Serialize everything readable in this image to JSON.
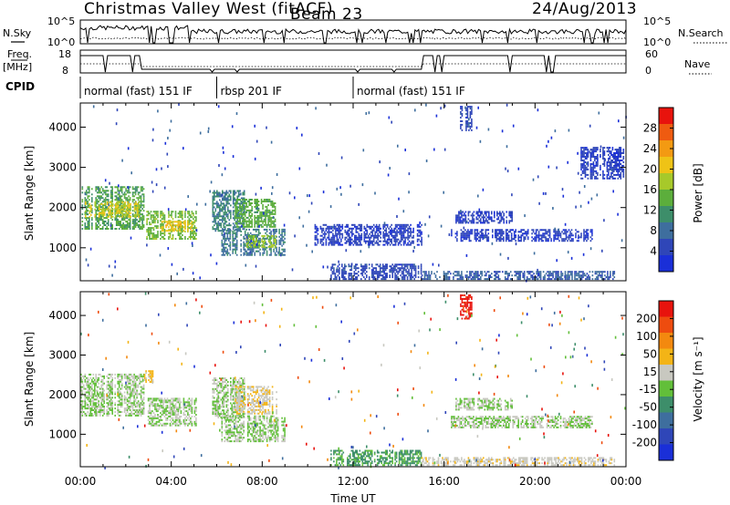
{
  "header": {
    "station": "Christmas Valley West (fitACF)",
    "beam": "Beam 23",
    "date": "24/Aug/2013"
  },
  "top_panels": {
    "nsky_label": "N.Sky",
    "nsky_ticks": [
      "10^5",
      "10^0"
    ],
    "nsearch_label": "N.Search",
    "nsearch_ticks": [
      "10^5",
      "10^0"
    ],
    "freq_label_1": "Freq.",
    "freq_label_2": "[MHz]",
    "freq_ticks": [
      "18",
      "8"
    ],
    "nave_label": "Nave",
    "nave_ticks": [
      "60",
      "0"
    ],
    "cpid_label": "CPID",
    "cpid_segments": [
      {
        "label": "normal (fast) 151 IF",
        "start": 0.0,
        "end": 6.0
      },
      {
        "label": "rbsp 201 IF",
        "start": 6.0,
        "end": 12.0
      },
      {
        "label": "normal (fast) 151 IF",
        "start": 12.0,
        "end": 24.0
      }
    ]
  },
  "colors": {
    "power_scale": [
      "#1a2fd8",
      "#2f46b8",
      "#3e6e9e",
      "#3d8e6a",
      "#5cae3c",
      "#a7c92a",
      "#efc316",
      "#f39a12",
      "#ef5b10",
      "#e8130d"
    ],
    "velocity_scale": [
      "#1a2fd8",
      "#2f46b8",
      "#3e6e9e",
      "#3d8e6a",
      "#62bf3a",
      "#c8c8c0",
      "#f3b416",
      "#f3890f",
      "#ee4c0f",
      "#e8130d"
    ]
  },
  "chart_data": [
    {
      "type": "heatmap",
      "title": "",
      "ylabel": "Slant Range [km]",
      "xlabel": "",
      "ylim": [
        180,
        4600
      ],
      "xlim": [
        0,
        24
      ],
      "yticks": [
        1000,
        2000,
        3000,
        4000
      ],
      "colorbar": {
        "label": "Power [dB]",
        "range": [
          0,
          32
        ],
        "ticks": [
          4,
          8,
          12,
          16,
          20,
          24,
          28
        ]
      },
      "regions": [
        {
          "t0": 0.0,
          "t1": 2.8,
          "r0": 1450,
          "r1": 2500,
          "level": 13
        },
        {
          "t0": 0.2,
          "t1": 2.6,
          "r0": 1750,
          "r1": 2150,
          "level": 19
        },
        {
          "t0": 2.9,
          "t1": 5.1,
          "r0": 1200,
          "r1": 1900,
          "level": 15
        },
        {
          "t0": 3.5,
          "t1": 4.9,
          "r0": 1400,
          "r1": 1650,
          "level": 21
        },
        {
          "t0": 5.8,
          "t1": 7.2,
          "r0": 1400,
          "r1": 2400,
          "level": 10
        },
        {
          "t0": 6.2,
          "t1": 9.0,
          "r0": 800,
          "r1": 1450,
          "level": 9
        },
        {
          "t0": 6.8,
          "t1": 8.6,
          "r0": 1500,
          "r1": 2200,
          "level": 14
        },
        {
          "t0": 7.3,
          "t1": 8.6,
          "r0": 1000,
          "r1": 1300,
          "level": 17
        },
        {
          "t0": 10.3,
          "t1": 15.0,
          "r0": 1050,
          "r1": 1550,
          "level": 4
        },
        {
          "t0": 16.3,
          "t1": 22.5,
          "r0": 1150,
          "r1": 1450,
          "level": 4
        },
        {
          "t0": 16.5,
          "t1": 19.0,
          "r0": 1600,
          "r1": 1900,
          "level": 4
        },
        {
          "t0": 22.0,
          "t1": 23.9,
          "r0": 2700,
          "r1": 3500,
          "level": 4
        },
        {
          "t0": 11.0,
          "t1": 15.0,
          "r0": 200,
          "r1": 600,
          "level": 5
        },
        {
          "t0": 15.0,
          "t1": 23.5,
          "r0": 200,
          "r1": 420,
          "level": 7
        },
        {
          "t0": 16.7,
          "t1": 17.2,
          "r0": 3900,
          "r1": 4500,
          "level": 5
        }
      ]
    },
    {
      "type": "heatmap",
      "title": "",
      "ylabel": "Slant Range [km]",
      "xlabel": "Time UT",
      "ylim": [
        180,
        4600
      ],
      "xlim": [
        0,
        24
      ],
      "yticks": [
        1000,
        2000,
        3000,
        4000
      ],
      "xticks": [
        "00:00",
        "04:00",
        "08:00",
        "12:00",
        "16:00",
        "20:00",
        "00:00"
      ],
      "colorbar": {
        "label": "Velocity [m s⁻¹]",
        "range": [
          -250,
          250
        ],
        "ticks": [
          200,
          100,
          50,
          15,
          -15,
          -50,
          -100,
          -200
        ]
      },
      "regions": [
        {
          "t0": 0.0,
          "t1": 2.8,
          "r0": 1450,
          "r1": 2500,
          "level": 0
        },
        {
          "t0": 2.9,
          "t1": 5.1,
          "r0": 1200,
          "r1": 1900,
          "level": 0
        },
        {
          "t0": 5.8,
          "t1": 7.2,
          "r0": 1400,
          "r1": 2400,
          "level": 0
        },
        {
          "t0": 6.2,
          "t1": 9.0,
          "r0": 800,
          "r1": 1450,
          "level": 0
        },
        {
          "t0": 6.8,
          "t1": 8.6,
          "r0": 1500,
          "r1": 2200,
          "level": 40
        },
        {
          "t0": 16.3,
          "t1": 22.5,
          "r0": 1150,
          "r1": 1450,
          "level": 0
        },
        {
          "t0": 16.5,
          "t1": 19.0,
          "r0": 1600,
          "r1": 1900,
          "level": 0
        },
        {
          "t0": 11.0,
          "t1": 15.0,
          "r0": 200,
          "r1": 600,
          "level": -60
        },
        {
          "t0": 15.0,
          "t1": 23.5,
          "r0": 200,
          "r1": 420,
          "level": 30
        },
        {
          "t0": 16.7,
          "t1": 17.2,
          "r0": 3900,
          "r1": 4500,
          "level": 220
        },
        {
          "t0": 2.8,
          "t1": 3.2,
          "r0": 2300,
          "r1": 2600,
          "level": 60
        }
      ]
    }
  ]
}
